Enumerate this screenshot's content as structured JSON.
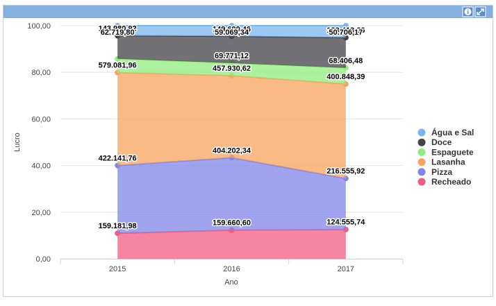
{
  "chart_data": {
    "type": "area",
    "stacking": "percent",
    "x_label": "Ano",
    "y_label": "Lucro",
    "categories": [
      "2015",
      "2016",
      "2017"
    ],
    "ylim": [
      0,
      100
    ],
    "yticks": [
      {
        "value": 0,
        "label": "0,00"
      },
      {
        "value": 20,
        "label": "20,00"
      },
      {
        "value": 40,
        "label": "40,00"
      },
      {
        "value": 60,
        "label": "60,00"
      },
      {
        "value": 80,
        "label": "80,00"
      },
      {
        "value": 100,
        "label": "100,00"
      }
    ],
    "grid": true,
    "legend": "right",
    "series": [
      {
        "name": "Água e Sal",
        "color": "#7cb5ec",
        "values": [
          62719.8,
          59069.34,
          50706.17
        ],
        "value_labels": [
          "62.719,80",
          "59.069,34",
          "50.706,17"
        ]
      },
      {
        "name": "Doce",
        "color": "#434348",
        "values": [
          143980.92,
          149600.46,
          128413.66
        ],
        "value_labels": [
          "143.980,92",
          "149.600,46",
          "128.413,66"
        ]
      },
      {
        "name": "Espaguete",
        "color": "#90ed7d",
        "values": [
          86000,
          69771.12,
          68406.48
        ],
        "value_labels": [
          null,
          "69.771,12",
          "68.406,48"
        ]
      },
      {
        "name": "Lasanha",
        "color": "#f7a35c",
        "values": [
          579081.96,
          457930.62,
          400848.39
        ],
        "value_labels": [
          "579.081,96",
          "457.930,62",
          "400.848,39"
        ]
      },
      {
        "name": "Pizza",
        "color": "#8085e9",
        "values": [
          422141.76,
          404202.34,
          216555.92
        ],
        "value_labels": [
          "422.141,76",
          "404.202,34",
          "216.555,92"
        ]
      },
      {
        "name": "Recheado",
        "color": "#f15c80",
        "values": [
          159181.98,
          159660.6,
          124555.74
        ],
        "value_labels": [
          "159.181,98",
          "159.660,60",
          "124.555,74"
        ]
      }
    ]
  }
}
